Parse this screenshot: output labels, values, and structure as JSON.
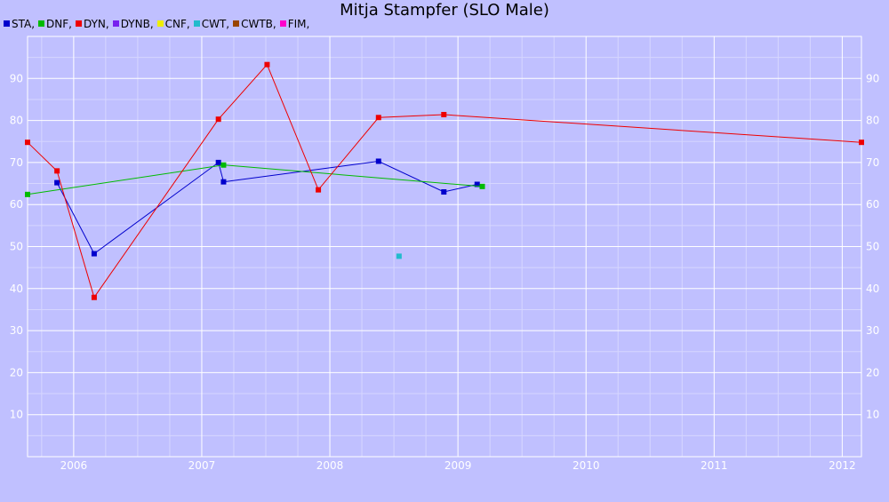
{
  "chart_data": {
    "type": "line",
    "title": "Mitja Stampfer (SLO Male)",
    "xlabel": "",
    "ylabel": "",
    "xlim": [
      2005.64,
      2012.15
    ],
    "ylim": [
      0,
      100
    ],
    "x_ticks": [
      2006,
      2007,
      2008,
      2009,
      2010,
      2011,
      2012
    ],
    "x_tick_labels": [
      "2006",
      "2007",
      "2008",
      "2009",
      "2010",
      "2011",
      "2012"
    ],
    "y_ticks": [
      10,
      20,
      30,
      40,
      50,
      60,
      70,
      80,
      90
    ],
    "y_tick_labels": [
      "10",
      "20",
      "30",
      "40",
      "50",
      "60",
      "70",
      "80",
      "90"
    ],
    "grid": true,
    "legend_position": "top-left",
    "legend": [
      {
        "label": "STA,",
        "color": "#0000cc"
      },
      {
        "label": "DNF,",
        "color": "#00bb00"
      },
      {
        "label": "DYN,",
        "color": "#ee0000"
      },
      {
        "label": "DYNB,",
        "color": "#7722ee"
      },
      {
        "label": "CNF,",
        "color": "#eeee00"
      },
      {
        "label": "CWT,",
        "color": "#22bbcc"
      },
      {
        "label": "CWTB,",
        "color": "#994400"
      },
      {
        "label": "FIM,",
        "color": "#ff00cc"
      }
    ],
    "series": [
      {
        "name": "STA",
        "color": "#0000cc",
        "points": [
          [
            2005.87,
            65.2
          ],
          [
            2006.16,
            48.3
          ],
          [
            2007.13,
            70.0
          ],
          [
            2007.17,
            65.4
          ],
          [
            2008.38,
            70.3
          ],
          [
            2008.89,
            63.0
          ],
          [
            2009.15,
            64.8
          ]
        ]
      },
      {
        "name": "DNF",
        "color": "#00bb00",
        "points": [
          [
            2005.64,
            62.4
          ],
          [
            2007.17,
            69.4
          ],
          [
            2009.19,
            64.3
          ]
        ]
      },
      {
        "name": "DYN",
        "color": "#ee0000",
        "points": [
          [
            2005.64,
            74.8
          ],
          [
            2005.87,
            68.0
          ],
          [
            2006.16,
            37.9
          ],
          [
            2007.13,
            80.3
          ],
          [
            2007.51,
            93.3
          ],
          [
            2007.91,
            63.5
          ],
          [
            2008.38,
            80.7
          ],
          [
            2008.89,
            81.4
          ],
          [
            2012.15,
            74.8
          ]
        ]
      },
      {
        "name": "CWT",
        "color": "#22bbcc",
        "points": [
          [
            2008.54,
            47.7
          ]
        ]
      }
    ]
  }
}
